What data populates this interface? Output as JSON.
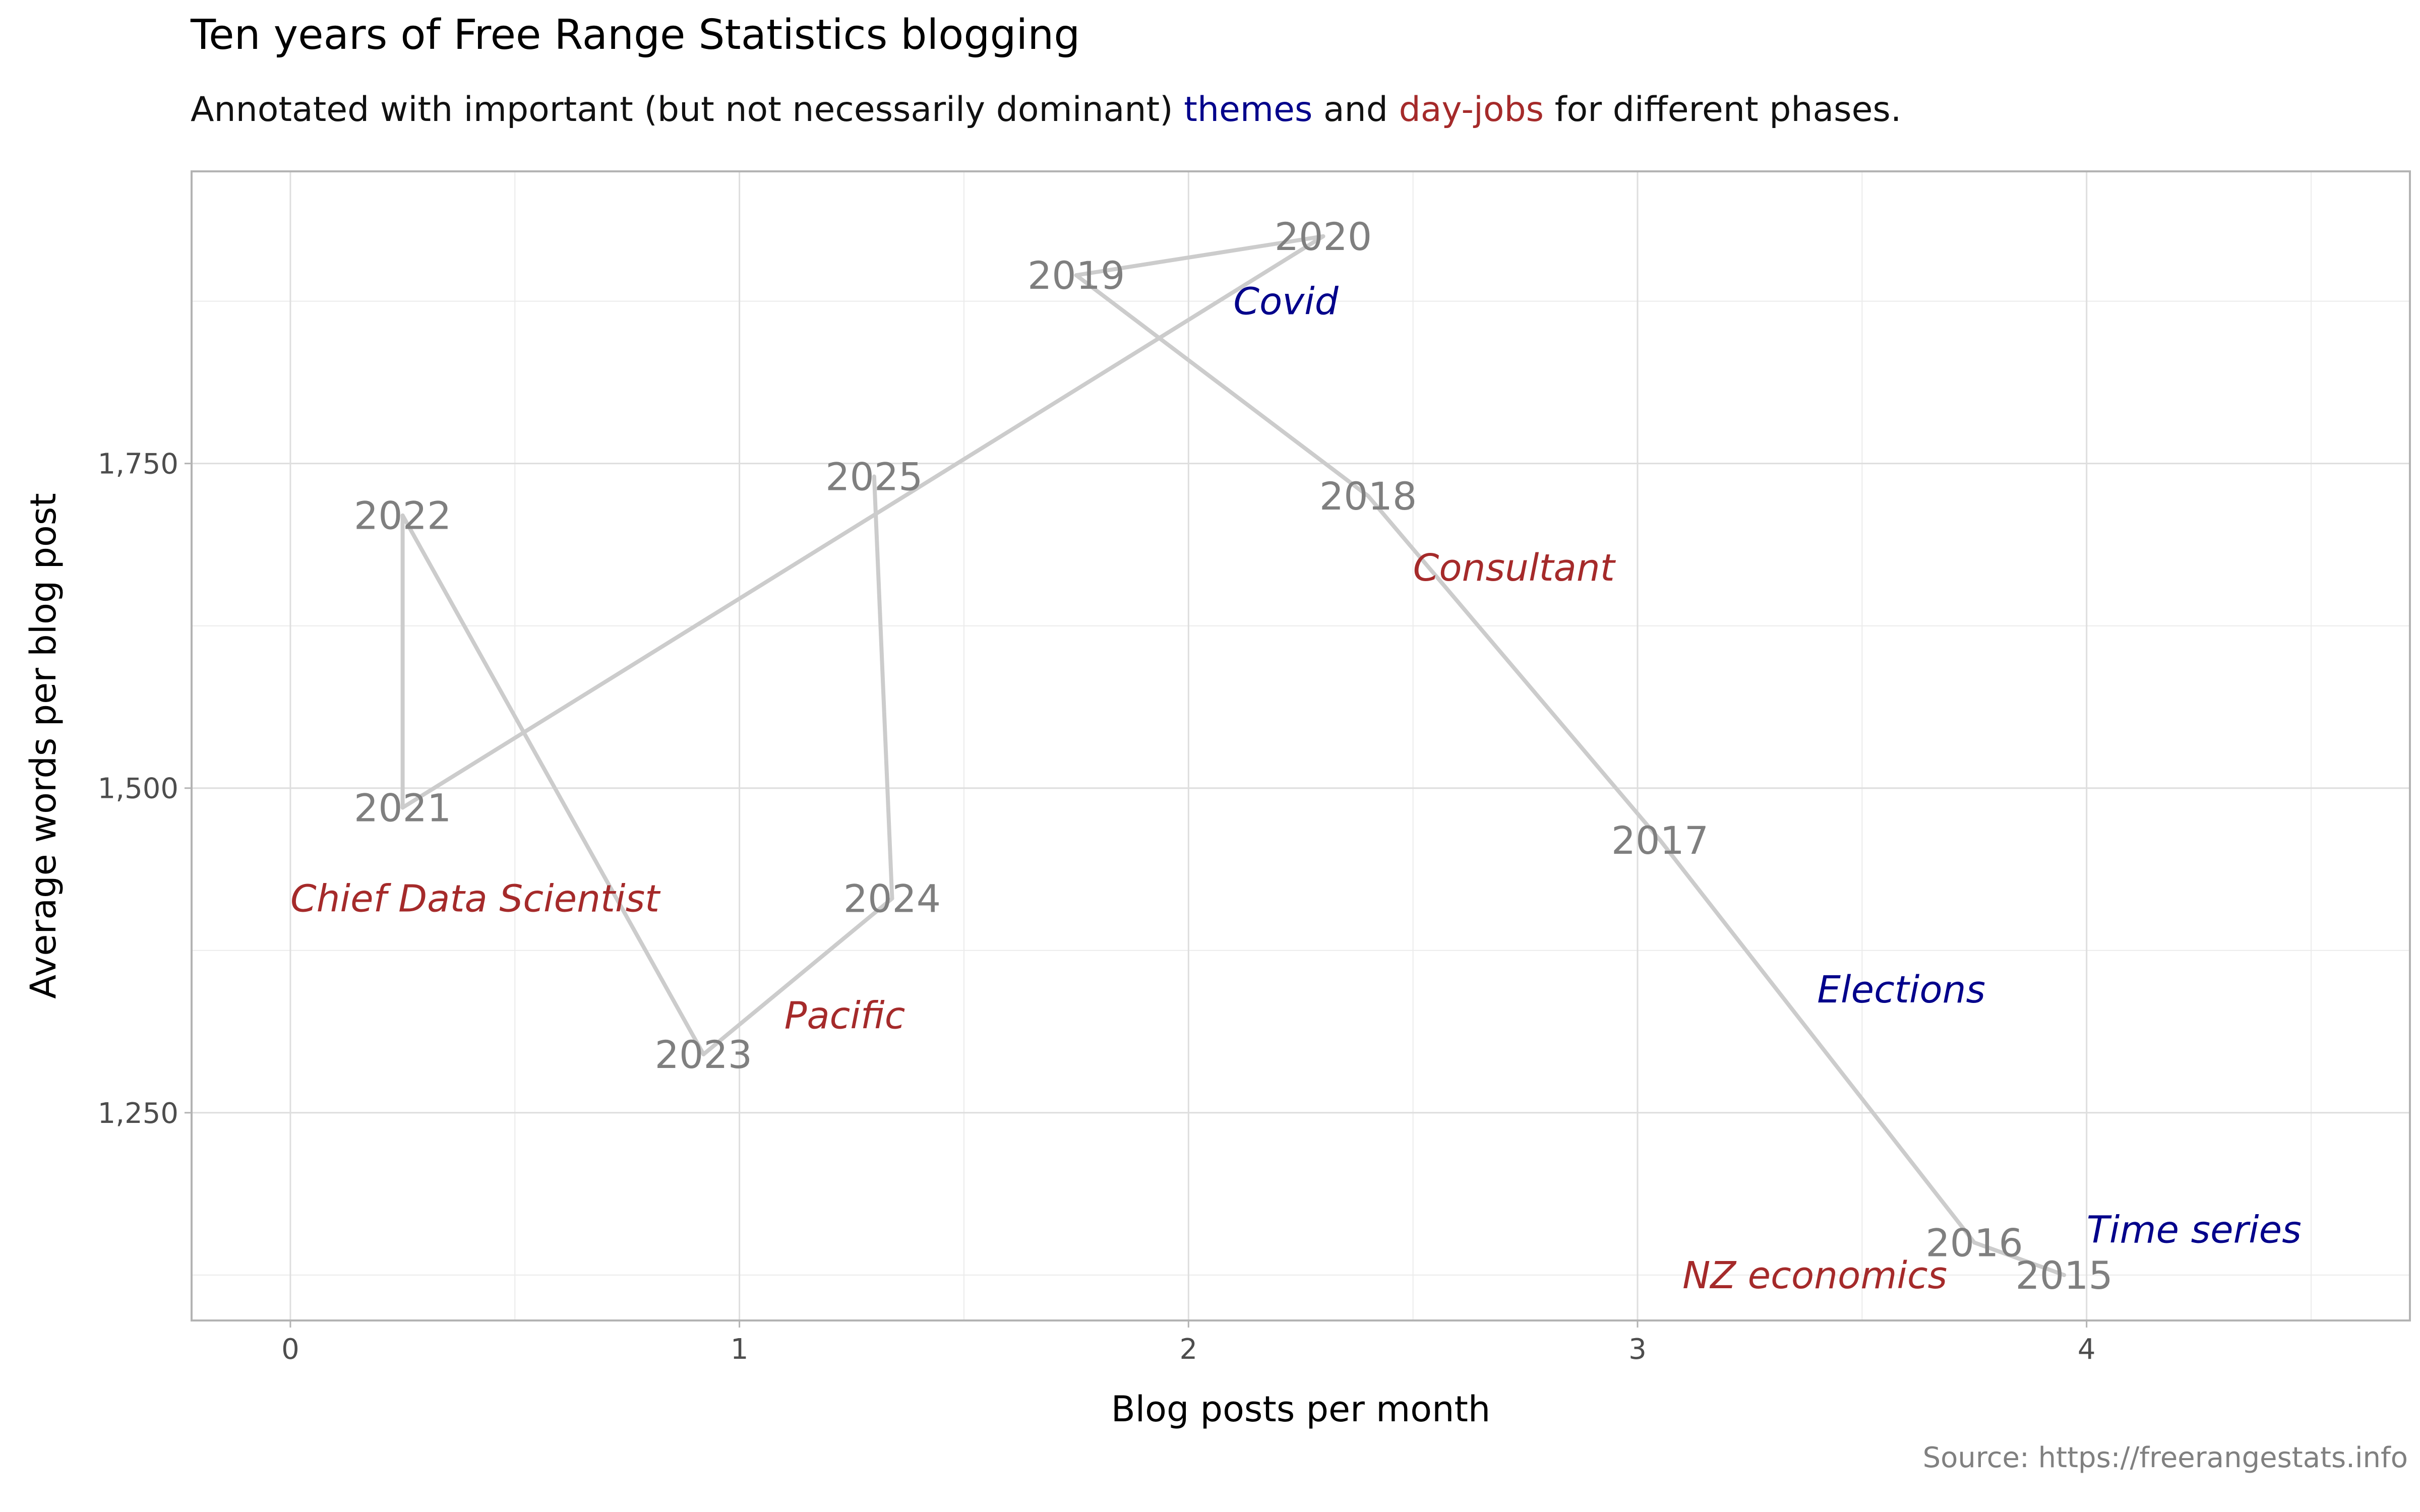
{
  "chart_data": {
    "type": "line",
    "title": "Ten years of Free Range Statistics blogging",
    "subtitle": {
      "pre": "Annotated with important (but not necessarily dominant) ",
      "themes": "themes",
      "mid": " and ",
      "dayjobs": "day-jobs",
      "post": " for different phases."
    },
    "caption": "Source: https://freerangestats.info",
    "xlabel": "Blog posts per month",
    "ylabel": "Average words per blog post",
    "xlim": [
      -0.22,
      4.72
    ],
    "ylim": [
      1090,
      1975
    ],
    "x_ticks": [
      0,
      1,
      2,
      3,
      4
    ],
    "y_ticks": [
      1250,
      1500,
      1750
    ],
    "y_tick_labels": [
      "1,250",
      "1,500",
      "1,750"
    ],
    "grid": true,
    "series": [
      {
        "points": [
          {
            "year": "2015",
            "x": 3.95,
            "y": 1125
          },
          {
            "year": "2016",
            "x": 3.75,
            "y": 1150
          },
          {
            "year": "2017",
            "x": 3.05,
            "y": 1460
          },
          {
            "year": "2018",
            "x": 2.4,
            "y": 1725
          },
          {
            "year": "2019",
            "x": 1.75,
            "y": 1895
          },
          {
            "year": "2020",
            "x": 2.3,
            "y": 1925
          },
          {
            "year": "2021",
            "x": 0.25,
            "y": 1485
          },
          {
            "year": "2022",
            "x": 0.25,
            "y": 1710
          },
          {
            "year": "2023",
            "x": 0.92,
            "y": 1295
          },
          {
            "year": "2024",
            "x": 1.34,
            "y": 1415
          },
          {
            "year": "2025",
            "x": 1.3,
            "y": 1740
          }
        ]
      }
    ],
    "annotations": [
      {
        "text": "Time series",
        "kind": "theme",
        "x": 4.0,
        "y": 1160
      },
      {
        "text": "NZ economics",
        "kind": "dayjob",
        "x": 3.1,
        "y": 1125
      },
      {
        "text": "Elections",
        "kind": "theme",
        "x": 3.4,
        "y": 1345
      },
      {
        "text": "Consultant",
        "kind": "dayjob",
        "x": 2.5,
        "y": 1670
      },
      {
        "text": "Covid",
        "kind": "theme",
        "x": 2.1,
        "y": 1875
      },
      {
        "text": "Chief Data Scientist",
        "kind": "dayjob",
        "x": 0.0,
        "y": 1415
      },
      {
        "text": "Pacific",
        "kind": "dayjob",
        "x": 1.1,
        "y": 1325
      }
    ],
    "colors": {
      "theme": "#00008b",
      "dayjob": "#a52a2a",
      "path": "#cccccc",
      "year_label": "#7f7f7f"
    }
  }
}
